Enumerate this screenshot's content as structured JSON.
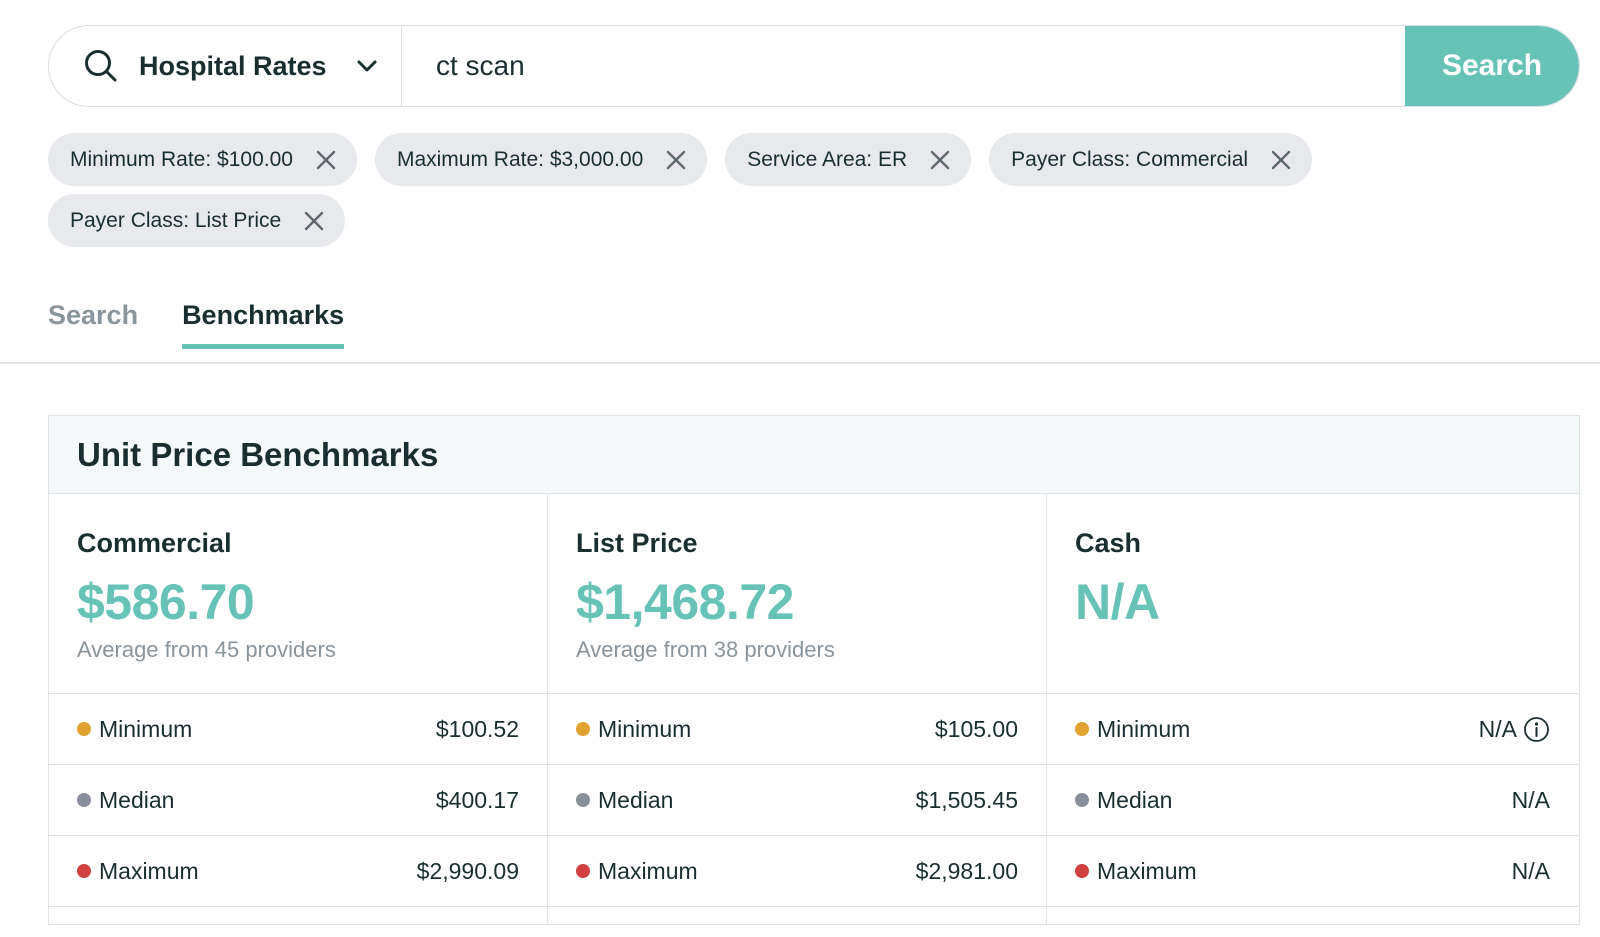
{
  "search": {
    "category": "Hospital Rates",
    "query": "ct scan",
    "button": "Search"
  },
  "filters": [
    "Minimum Rate: $100.00",
    "Maximum Rate: $3,000.00",
    "Service Area: ER",
    "Payer Class: Commercial",
    "Payer Class: List Price"
  ],
  "tabs": [
    {
      "label": "Search",
      "active": false
    },
    {
      "label": "Benchmarks",
      "active": true
    }
  ],
  "benchmarks": {
    "title": "Unit Price Benchmarks",
    "columns": [
      {
        "name": "Commercial",
        "value": "$586.70",
        "subtitle": "Average from 45 providers",
        "rows": [
          {
            "label": "Minimum",
            "value": "$100.52"
          },
          {
            "label": "Median",
            "value": "$400.17"
          },
          {
            "label": "Maximum",
            "value": "$2,990.09"
          }
        ]
      },
      {
        "name": "List Price",
        "value": "$1,468.72",
        "subtitle": "Average from 38 providers",
        "rows": [
          {
            "label": "Minimum",
            "value": "$105.00"
          },
          {
            "label": "Median",
            "value": "$1,505.45"
          },
          {
            "label": "Maximum",
            "value": "$2,981.00"
          }
        ]
      },
      {
        "name": "Cash",
        "value": "N/A",
        "subtitle": "",
        "rows": [
          {
            "label": "Minimum",
            "value": "N/A"
          },
          {
            "label": "Median",
            "value": "N/A"
          },
          {
            "label": "Maximum",
            "value": "N/A"
          }
        ]
      }
    ]
  },
  "colors": {
    "accent": "#67c3b6",
    "minimum": "#e2a230",
    "median": "#8a8f9c",
    "maximum": "#d0423f"
  }
}
